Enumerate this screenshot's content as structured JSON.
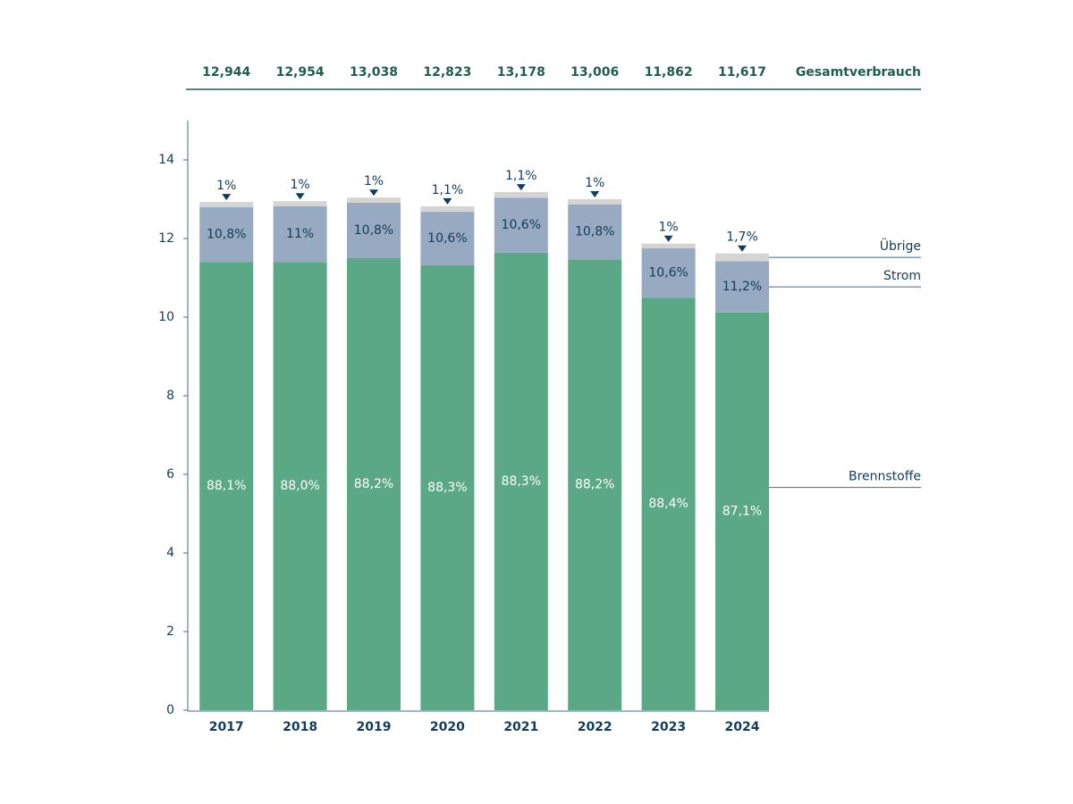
{
  "chart_data": {
    "type": "stacked_bar",
    "categories": [
      "2017",
      "2018",
      "2019",
      "2020",
      "2021",
      "2022",
      "2023",
      "2024"
    ],
    "series": [
      {
        "name": "Brennstoffe",
        "color": "#5ba886",
        "values": [
          11.4,
          11.4,
          11.5,
          11.32,
          11.64,
          11.47,
          10.49,
          10.12
        ],
        "share_labels": [
          "88,1%",
          "88,0%",
          "88,2%",
          "88,3%",
          "88,3%",
          "88,2%",
          "88,4%",
          "87,1%"
        ]
      },
      {
        "name": "Strom",
        "color": "#98a9c2",
        "values": [
          1.4,
          1.42,
          1.41,
          1.36,
          1.4,
          1.4,
          1.26,
          1.3
        ],
        "share_labels": [
          "10,8%",
          "11%",
          "10,8%",
          "10,6%",
          "10,6%",
          "10,8%",
          "10,6%",
          "11,2%"
        ]
      },
      {
        "name": "Übrige",
        "color": "#d4d4d4",
        "values": [
          0.13,
          0.13,
          0.13,
          0.14,
          0.14,
          0.13,
          0.12,
          0.2
        ],
        "share_labels": [
          "1%",
          "1%",
          "1%",
          "1,1%",
          "1,1%",
          "1%",
          "1%",
          "1,7%"
        ]
      }
    ],
    "totals_title": "Gesamtverbrauch",
    "totals": [
      {
        "value": 12.944,
        "label": "12,944"
      },
      {
        "value": 12.954,
        "label": "12,954"
      },
      {
        "value": 13.038,
        "label": "13,038"
      },
      {
        "value": 12.823,
        "label": "12,823"
      },
      {
        "value": 13.178,
        "label": "13,178"
      },
      {
        "value": 13.006,
        "label": "13,006"
      },
      {
        "value": 11.862,
        "label": "11,862"
      },
      {
        "value": 11.617,
        "label": "11,617"
      }
    ],
    "ylim": [
      0,
      15
    ],
    "yticks": [
      0,
      2,
      4,
      6,
      8,
      10,
      12,
      14
    ],
    "grid": false
  }
}
